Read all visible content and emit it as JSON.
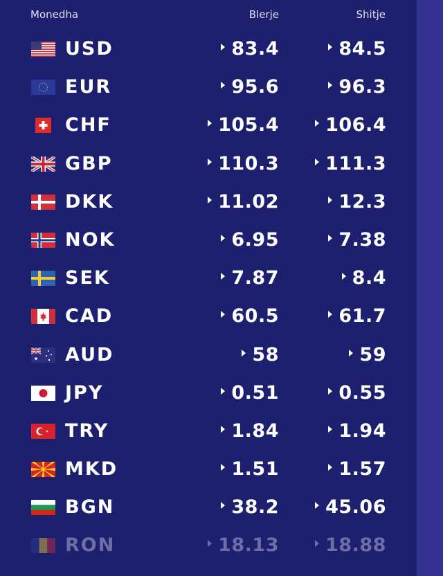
{
  "header": {
    "currency": "Monedha",
    "buy": "Blerje",
    "sell": "Shitje"
  },
  "colors": {
    "background": "#1d1f6f",
    "right_strip": "#33338f",
    "faded_text": "#6c6fa6"
  },
  "rates": [
    {
      "code": "USD",
      "flag": "us-flag-icon",
      "buy": "83.4",
      "sell": "84.5"
    },
    {
      "code": "EUR",
      "flag": "eu-flag-icon",
      "buy": "95.6",
      "sell": "96.3"
    },
    {
      "code": "CHF",
      "flag": "ch-flag-icon",
      "buy": "105.4",
      "sell": "106.4"
    },
    {
      "code": "GBP",
      "flag": "gb-flag-icon",
      "buy": "110.3",
      "sell": "111.3"
    },
    {
      "code": "DKK",
      "flag": "dk-flag-icon",
      "buy": "11.02",
      "sell": "12.3"
    },
    {
      "code": "NOK",
      "flag": "no-flag-icon",
      "buy": "6.95",
      "sell": "7.38"
    },
    {
      "code": "SEK",
      "flag": "se-flag-icon",
      "buy": "7.87",
      "sell": "8.4"
    },
    {
      "code": "CAD",
      "flag": "ca-flag-icon",
      "buy": "60.5",
      "sell": "61.7"
    },
    {
      "code": "AUD",
      "flag": "au-flag-icon",
      "buy": "58",
      "sell": "59"
    },
    {
      "code": "JPY",
      "flag": "jp-flag-icon",
      "buy": "0.51",
      "sell": "0.55"
    },
    {
      "code": "TRY",
      "flag": "tr-flag-icon",
      "buy": "1.84",
      "sell": "1.94"
    },
    {
      "code": "MKD",
      "flag": "mk-flag-icon",
      "buy": "1.51",
      "sell": "1.57"
    },
    {
      "code": "BGN",
      "flag": "bg-flag-icon",
      "buy": "38.2",
      "sell": "45.06"
    },
    {
      "code": "RON",
      "flag": "ro-flag-icon",
      "buy": "18.13",
      "sell": "18.88"
    }
  ]
}
